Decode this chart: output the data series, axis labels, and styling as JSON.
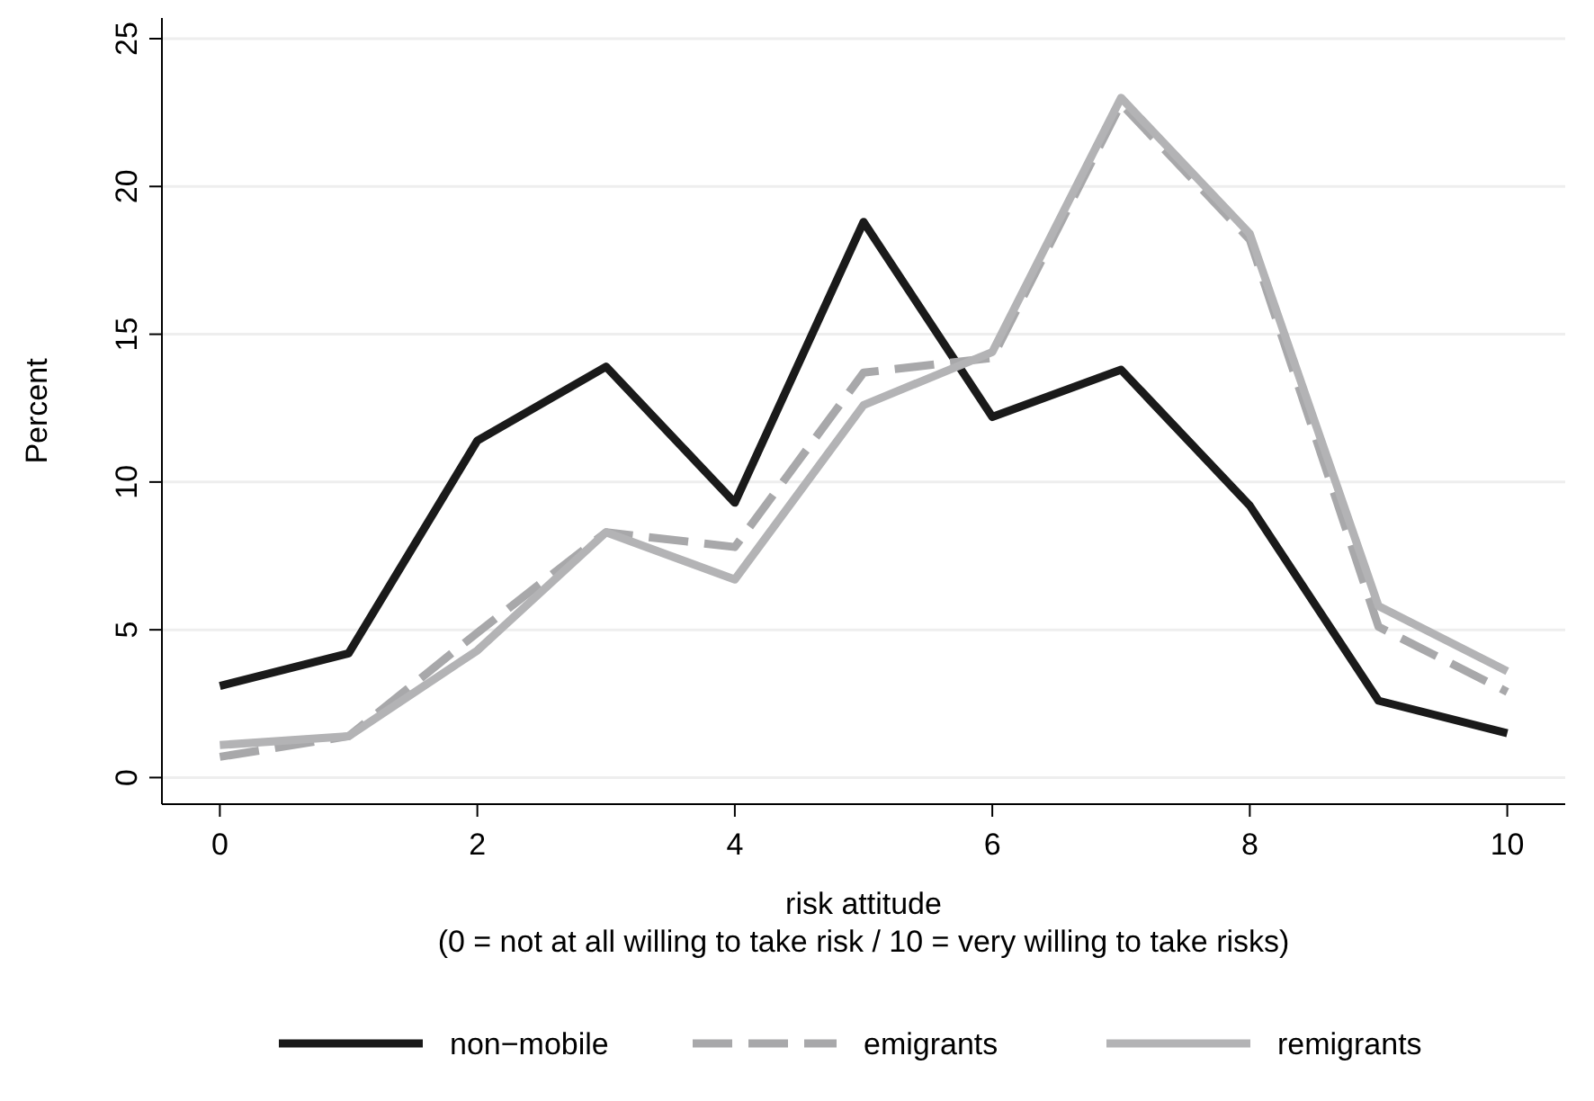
{
  "chart_data": {
    "type": "line",
    "xlabel": "risk attitude\n(0 = not at all willing to take risk / 10 = very willing to take risks)",
    "ylabel": "Percent",
    "x": [
      0,
      1,
      2,
      3,
      4,
      5,
      6,
      7,
      8,
      9,
      10
    ],
    "xlim": [
      -0.45,
      10.45
    ],
    "xticks": [
      0,
      2,
      4,
      6,
      8,
      10
    ],
    "ylim": [
      -0.9,
      25.7
    ],
    "yticks": [
      0,
      5,
      10,
      15,
      20,
      25
    ],
    "grid": "y",
    "legend": "bottom",
    "marker": "none",
    "series": [
      {
        "name": "non−mobile",
        "color": "#1a1a1a",
        "line_style": "solid",
        "values": [
          3.1,
          4.2,
          11.4,
          13.9,
          9.3,
          18.8,
          12.2,
          13.8,
          9.2,
          2.6,
          1.5
        ]
      },
      {
        "name": "emigrants",
        "color": "#a8a8aa",
        "line_style": "dashed",
        "values": [
          0.7,
          1.4,
          4.9,
          8.3,
          7.8,
          13.7,
          14.2,
          22.8,
          18.2,
          5.1,
          2.9
        ]
      },
      {
        "name": "remigrants",
        "color": "#b3b3b5",
        "line_style": "solid",
        "values": [
          1.1,
          1.4,
          4.3,
          8.3,
          6.7,
          12.6,
          14.4,
          23.0,
          18.4,
          5.8,
          3.6
        ]
      }
    ]
  }
}
